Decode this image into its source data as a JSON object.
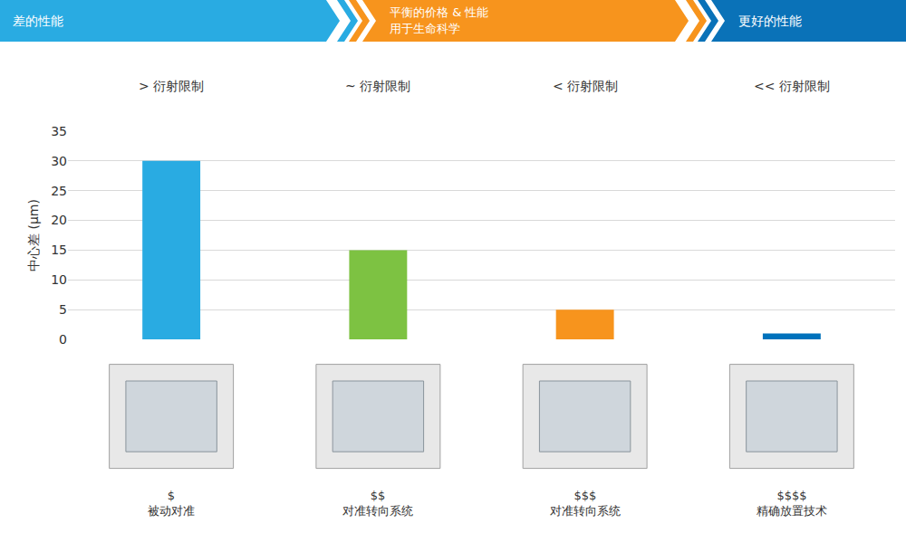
{
  "chart_data": {
    "type": "bar",
    "categories": [
      "被动对准",
      "对准转向系统",
      "对准转向系统",
      "精确放置技术"
    ],
    "price_labels": [
      "$",
      "$$",
      "$$$",
      "$$$$"
    ],
    "performance_labels": [
      "> 衍射限制",
      "~ 衍射限制",
      "< 衍射限制",
      "<< 衍射限制"
    ],
    "values": [
      30,
      15,
      5,
      1
    ],
    "colors": [
      "#29abe2",
      "#7dc242",
      "#f7941d",
      "#0072bc"
    ],
    "y_label": "中心差 (µm)",
    "ylim": [
      0,
      35
    ],
    "yticks": [
      0,
      5,
      10,
      15,
      20,
      25,
      30,
      35
    ],
    "grid": true,
    "banner": [
      {
        "lines": [
          "差的性能"
        ],
        "color": "#29abe2"
      },
      {
        "lines": [
          "平衡的价格 & 性能",
          "用于生命科学"
        ],
        "color": "#f7941d"
      },
      {
        "lines": [
          "更好的性能"
        ],
        "color": "#0a72b8"
      }
    ]
  }
}
